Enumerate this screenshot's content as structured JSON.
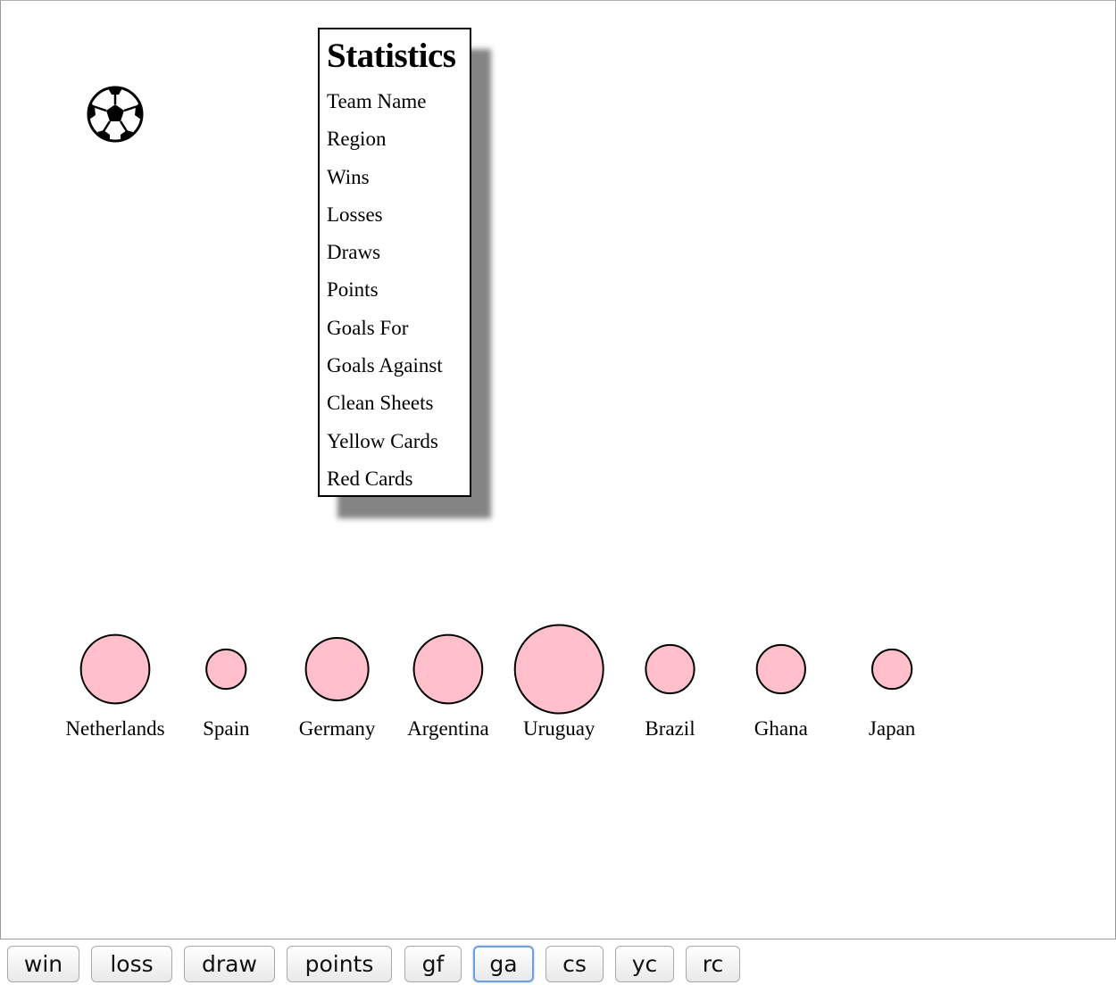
{
  "stats_panel": {
    "title": "Statistics",
    "rows": [
      "Team Name",
      "Region",
      "Wins",
      "Losses",
      "Draws",
      "Points",
      "Goals For",
      "Goals Against",
      "Clean Sheets",
      "Yellow Cards",
      "Red Cards"
    ]
  },
  "icons": {
    "logo": "soccer-ball-icon"
  },
  "colors": {
    "bubble_fill": "#ffc0cb",
    "bubble_stroke": "#000000",
    "focused_button_ring": "#6fa0dc"
  },
  "chart_data": {
    "type": "scatter",
    "encoding": "bubble size by selected stat",
    "selected_stat": "ga",
    "teams": [
      {
        "name": "Netherlands",
        "value": 6
      },
      {
        "name": "Spain",
        "value": 2
      },
      {
        "name": "Germany",
        "value": 5
      },
      {
        "name": "Argentina",
        "value": 6
      },
      {
        "name": "Uruguay",
        "value": 10
      },
      {
        "name": "Brazil",
        "value": 3
      },
      {
        "name": "Ghana",
        "value": 3
      },
      {
        "name": "Japan",
        "value": 2
      }
    ]
  },
  "buttons": [
    {
      "label": "win",
      "focused": false
    },
    {
      "label": "loss",
      "focused": false
    },
    {
      "label": "draw",
      "focused": false
    },
    {
      "label": "points",
      "focused": false
    },
    {
      "label": "gf",
      "focused": false
    },
    {
      "label": "ga",
      "focused": true
    },
    {
      "label": "cs",
      "focused": false
    },
    {
      "label": "yc",
      "focused": false
    },
    {
      "label": "rc",
      "focused": false
    }
  ]
}
